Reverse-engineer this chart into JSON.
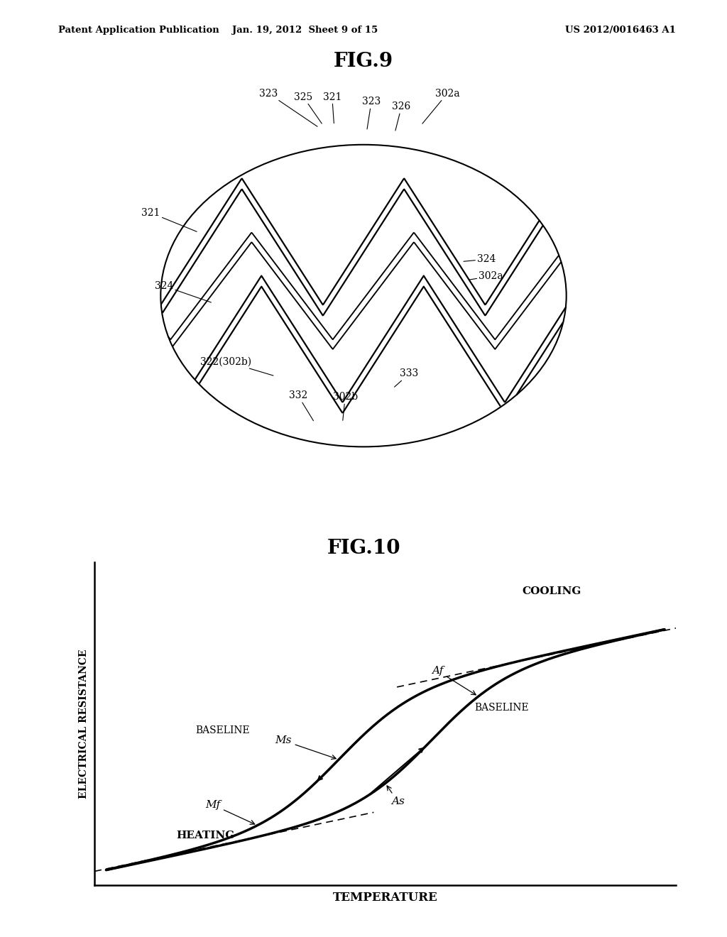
{
  "bg_color": "#ffffff",
  "header_left": "Patent Application Publication",
  "header_mid": "Jan. 19, 2012  Sheet 9 of 15",
  "header_right": "US 2012/0016463 A1",
  "fig9_title": "FIG.9",
  "fig10_title": "FIG.10",
  "fig10_ylabel": "ELECTRICAL RESISTANCE",
  "fig10_xlabel": "TEMPERATURE"
}
